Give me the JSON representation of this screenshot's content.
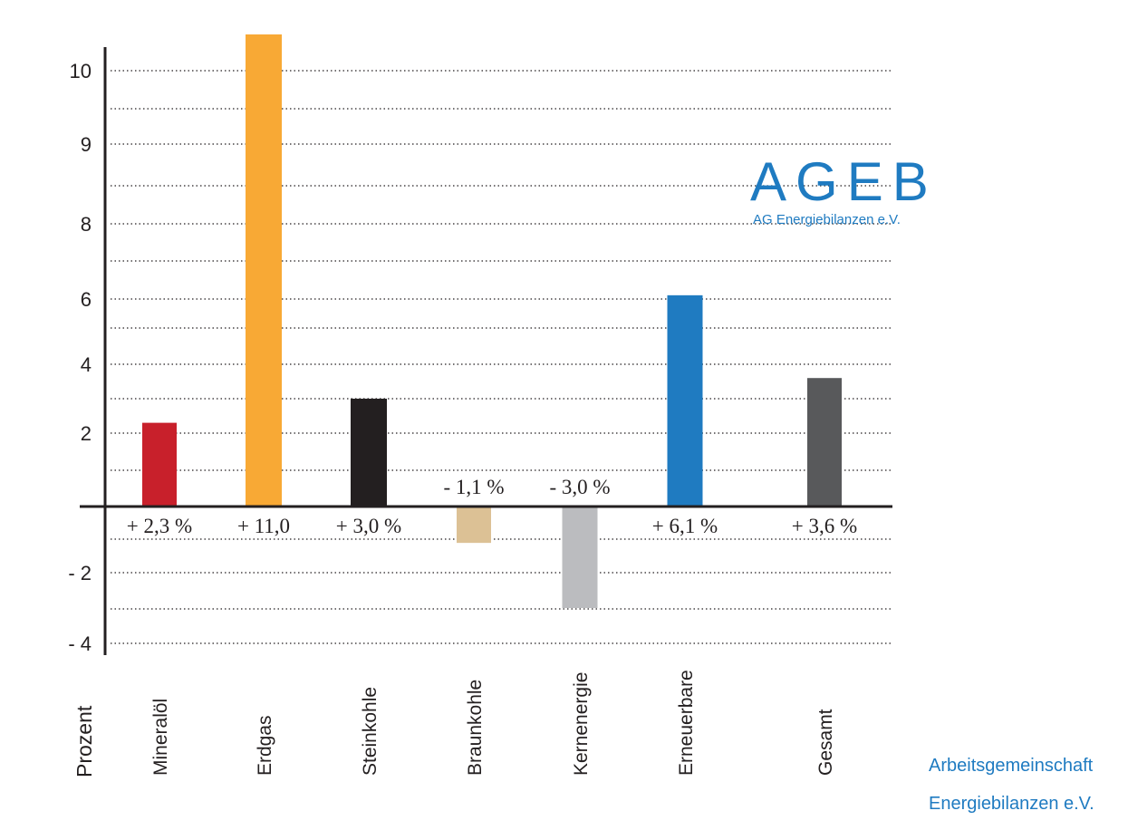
{
  "chart_data": {
    "type": "bar",
    "categories": [
      "Mineralöl",
      "Erdgas",
      "Steinkohle",
      "Braunkohle",
      "Kernenergie",
      "Erneuerbare",
      "Gesamt"
    ],
    "values": [
      2.3,
      11.0,
      3.0,
      -1.1,
      -3.0,
      6.1,
      3.6
    ],
    "data_labels": [
      "+ 2,3 %",
      "+ 11,0",
      "+ 3,0 %",
      "- 1,1 %",
      "- 3,0 %",
      "+ 6,1 %",
      "+ 3,6 %"
    ],
    "colors": [
      "#c8202b",
      "#f8a935",
      "#231f20",
      "#dcc195",
      "#bbbcbf",
      "#1f7bc1",
      "#58595b"
    ],
    "ylabel": "Prozent",
    "yticks": [
      {
        "value": 10,
        "label": "10"
      },
      {
        "value": 9,
        "label": "9"
      },
      {
        "value": 8,
        "label": "8"
      },
      {
        "value": 6,
        "label": "6"
      },
      {
        "value": 4,
        "label": "4"
      },
      {
        "value": 2,
        "label": "2"
      },
      {
        "value": -2,
        "label": "- 2"
      },
      {
        "value": -4,
        "label": "- 4"
      }
    ],
    "grid": true
  },
  "logo": {
    "abbr": "AGEB",
    "name": "AG Energiebilanzen e.V."
  },
  "footer": {
    "line1": "Arbeitsgemeinschaft",
    "line2": "Energiebilanzen e.V."
  }
}
